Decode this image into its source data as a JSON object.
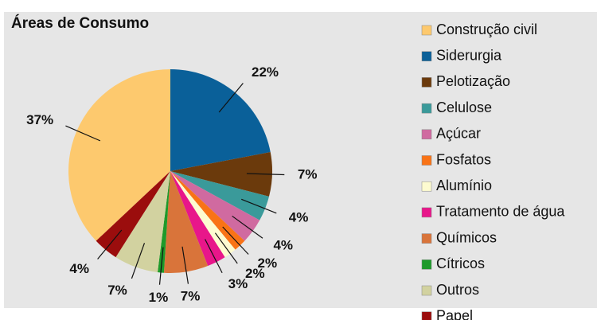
{
  "chart_data": {
    "type": "pie",
    "title": "Áreas de Consumo",
    "categories": [
      "Construção civil",
      "Siderurgia",
      "Pelotização",
      "Celulose",
      "Açúcar",
      "Fosfatos",
      "Alumínio",
      "Tratamento de água",
      "Químicos",
      "Cítricos",
      "Outros",
      "Papel"
    ],
    "values": [
      37,
      22,
      7,
      4,
      4,
      2,
      2,
      3,
      7,
      1,
      7,
      4
    ],
    "value_labels": [
      "37%",
      "22%",
      "7%",
      "4%",
      "4%",
      "2%",
      "2%",
      "3%",
      "7%",
      "1%",
      "7%",
      "4%"
    ],
    "colors": [
      "#fdc96e",
      "#0a6099",
      "#6b3a0c",
      "#3a9a9a",
      "#d06aa0",
      "#f97316",
      "#fdfbd0",
      "#e8168a",
      "#d9743a",
      "#1e9a2a",
      "#d2d2a0",
      "#9b0d0d"
    ],
    "legend": "right"
  }
}
